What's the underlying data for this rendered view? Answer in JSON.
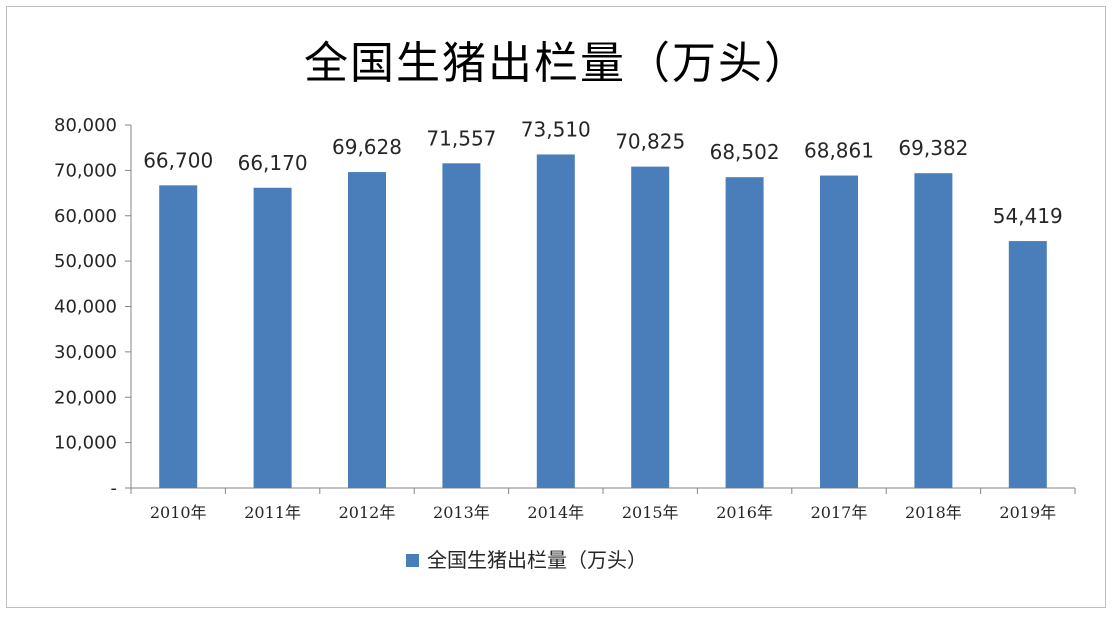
{
  "chart_data": {
    "type": "bar",
    "title": "全国生猪出栏量（万头）",
    "categories": [
      "2010年",
      "2011年",
      "2012年",
      "2013年",
      "2014年",
      "2015年",
      "2016年",
      "2017年",
      "2018年",
      "2019年"
    ],
    "series": [
      {
        "name": "全国生猪出栏量（万头）",
        "values": [
          66700,
          66170,
          69628,
          71557,
          73510,
          70825,
          68502,
          68861,
          69382,
          54419
        ],
        "data_labels": [
          "66,700",
          "66,170",
          "69,628",
          "71,557",
          "73,510",
          "70,825",
          "68,502",
          "68,861",
          "69,382",
          "54,419"
        ]
      }
    ],
    "y_ticks": [
      "-",
      "10,000",
      "20,000",
      "30,000",
      "40,000",
      "50,000",
      "60,000",
      "70,000",
      "80,000"
    ],
    "ylim": [
      0,
      80000
    ],
    "xlabel": "",
    "ylabel": "",
    "legend_position": "bottom",
    "grid": false,
    "bar_color": "#4a7ebb"
  }
}
